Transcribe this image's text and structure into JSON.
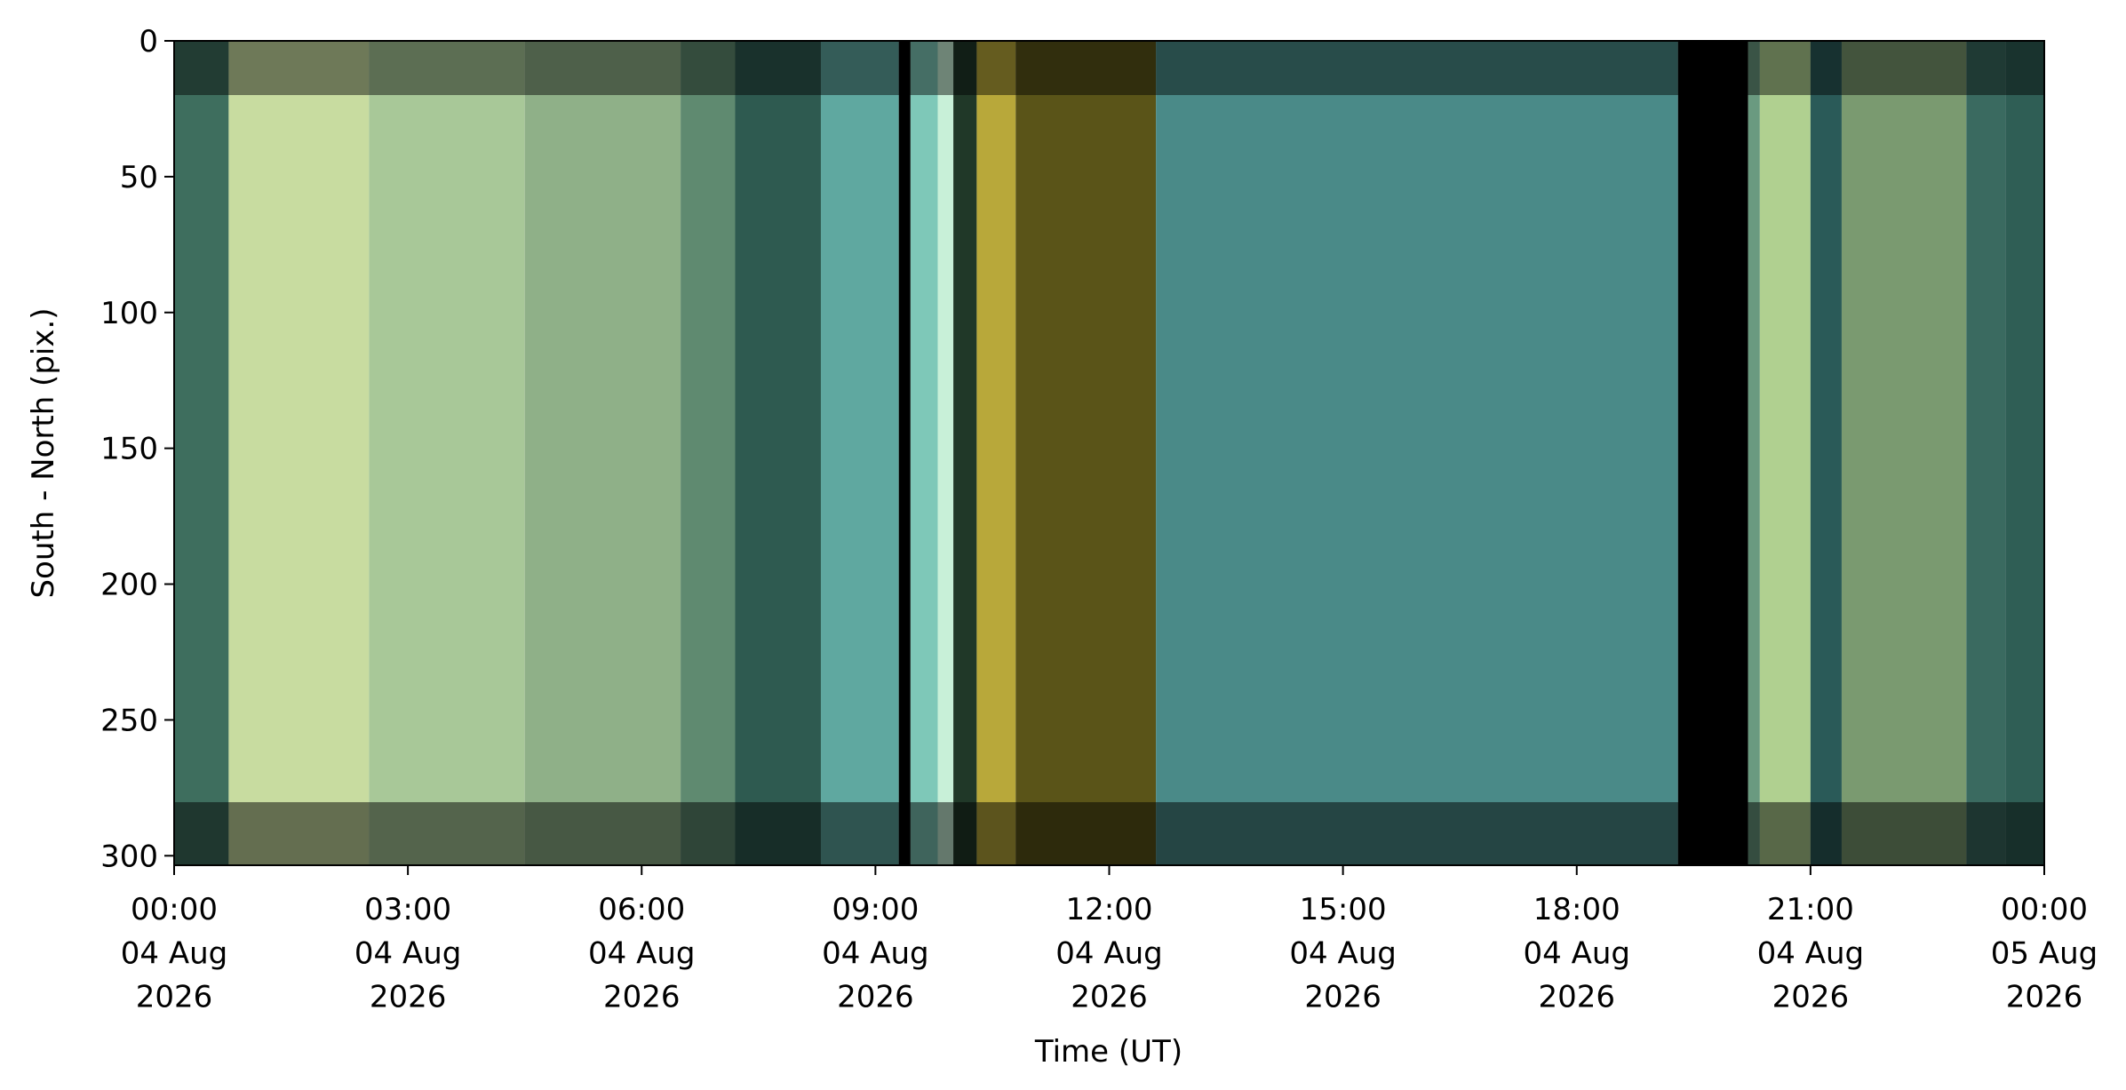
{
  "chart_data": {
    "type": "keogram",
    "xlabel": "Time (UT)",
    "ylabel": "South - North (pix.)",
    "xlim": [
      0,
      24
    ],
    "ylim": [
      303.5,
      0
    ],
    "yticks": [
      0,
      50,
      100,
      150,
      200,
      250,
      300
    ],
    "xticks": [
      {
        "value": 0,
        "label": "00:00\n04 Aug\n2026"
      },
      {
        "value": 3,
        "label": "03:00\n04 Aug\n2026"
      },
      {
        "value": 6,
        "label": "06:00\n04 Aug\n2026"
      },
      {
        "value": 9,
        "label": "09:00\n04 Aug\n2026"
      },
      {
        "value": 12,
        "label": "12:00\n04 Aug\n2026"
      },
      {
        "value": 15,
        "label": "15:00\n04 Aug\n2026"
      },
      {
        "value": 18,
        "label": "18:00\n04 Aug\n2026"
      },
      {
        "value": 21,
        "label": "21:00\n04 Aug\n2026"
      },
      {
        "value": 24,
        "label": "00:00\n05 Aug\n2026"
      }
    ],
    "column_edges": [
      0,
      0.7,
      2.5,
      4.5,
      6.5,
      7.2,
      8.3,
      9.3,
      9.45,
      9.8,
      10.0,
      10.3,
      10.8,
      12.6,
      19.3,
      20.2,
      20.35,
      21.0,
      21.4,
      23.0,
      23.5,
      24
    ],
    "column_colors": [
      "#3e6e5e",
      "#c8dca0",
      "#a8c898",
      "#8fb088",
      "#5f8a70",
      "#2e5a50",
      "#5fa8a0",
      "#000000",
      "#7ec8b8",
      "#c8f0d8",
      "#203828",
      "#b8a83a",
      "#5a5418",
      "#4a8a88",
      "#000000",
      "#6a9a80",
      "#b0d090",
      "#2a5a58",
      "#7a9a70",
      "#3a6a60",
      "#2f5e55"
    ]
  }
}
